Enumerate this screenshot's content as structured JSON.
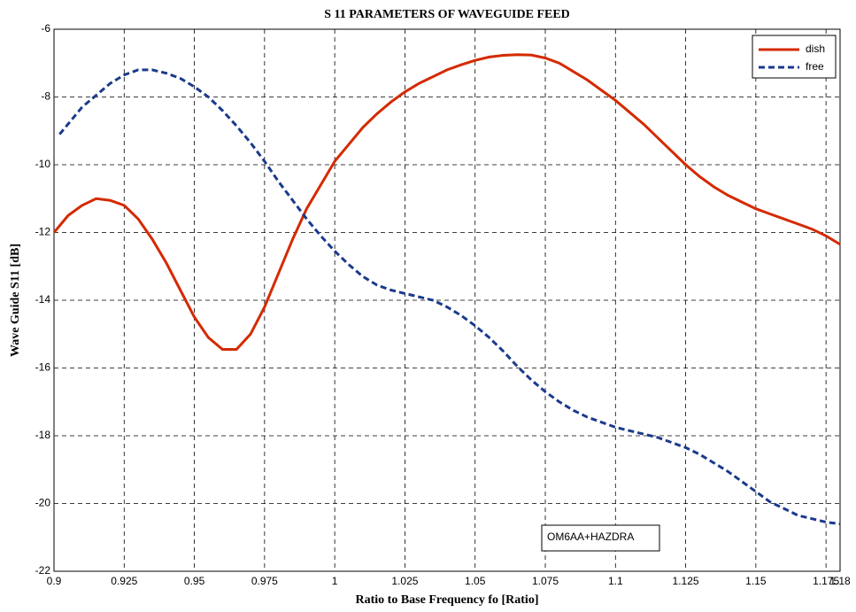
{
  "chart_data": {
    "type": "line",
    "title": "S 11 PARAMETERS OF WAVEGUIDE FEED",
    "x_label": "Ratio to Base Frequency fo  [Ratio]",
    "y_label": "Wave Guide S11 [dB]",
    "annotation": "OM6AA+HAZDRA",
    "xlim": [
      0.9,
      1.18
    ],
    "ylim": [
      -22,
      -6
    ],
    "xticks": [
      0.9,
      0.925,
      0.95,
      0.975,
      1,
      1.025,
      1.05,
      1.075,
      1.1,
      1.125,
      1.15,
      1.175,
      1.18
    ],
    "yticks": [
      -22,
      -20,
      -18,
      -16,
      -14,
      -12,
      -10,
      -8,
      -6
    ],
    "grid": true,
    "legend": "upper right",
    "series": [
      {
        "name": "dish",
        "color": "#d42a00",
        "style": "solid",
        "x": [
          0.9,
          0.905,
          0.91,
          0.915,
          0.92,
          0.925,
          0.93,
          0.935,
          0.94,
          0.945,
          0.95,
          0.955,
          0.96,
          0.965,
          0.97,
          0.975,
          0.98,
          0.985,
          0.99,
          0.995,
          1.0,
          1.005,
          1.01,
          1.015,
          1.02,
          1.025,
          1.03,
          1.035,
          1.04,
          1.045,
          1.05,
          1.055,
          1.06,
          1.065,
          1.07,
          1.075,
          1.08,
          1.085,
          1.09,
          1.095,
          1.1,
          1.105,
          1.11,
          1.115,
          1.12,
          1.125,
          1.13,
          1.135,
          1.14,
          1.145,
          1.15,
          1.155,
          1.16,
          1.165,
          1.17,
          1.175,
          1.18
        ],
        "values": [
          -12.0,
          -11.5,
          -11.2,
          -11.0,
          -11.05,
          -11.2,
          -11.6,
          -12.2,
          -12.9,
          -13.7,
          -14.5,
          -15.1,
          -15.45,
          -15.45,
          -15.0,
          -14.2,
          -13.2,
          -12.2,
          -11.3,
          -10.6,
          -9.9,
          -9.4,
          -8.9,
          -8.5,
          -8.15,
          -7.85,
          -7.6,
          -7.4,
          -7.2,
          -7.05,
          -6.92,
          -6.82,
          -6.77,
          -6.75,
          -6.76,
          -6.85,
          -7.0,
          -7.25,
          -7.5,
          -7.8,
          -8.1,
          -8.45,
          -8.8,
          -9.2,
          -9.6,
          -10.0,
          -10.35,
          -10.65,
          -10.9,
          -11.1,
          -11.3,
          -11.45,
          -11.6,
          -11.75,
          -11.9,
          -12.1,
          -12.35
        ]
      },
      {
        "name": "free",
        "color": "#1a3a8c",
        "style": "dashed",
        "x": [
          0.902,
          0.905,
          0.91,
          0.915,
          0.92,
          0.925,
          0.93,
          0.935,
          0.94,
          0.945,
          0.95,
          0.955,
          0.96,
          0.965,
          0.97,
          0.975,
          0.98,
          0.985,
          0.99,
          0.995,
          1.0,
          1.005,
          1.01,
          1.015,
          1.02,
          1.025,
          1.03,
          1.035,
          1.04,
          1.045,
          1.05,
          1.055,
          1.06,
          1.065,
          1.07,
          1.075,
          1.08,
          1.085,
          1.09,
          1.095,
          1.1,
          1.105,
          1.11,
          1.115,
          1.12,
          1.125,
          1.13,
          1.135,
          1.14,
          1.145,
          1.15,
          1.155,
          1.16,
          1.165,
          1.17,
          1.175,
          1.18
        ],
        "values": [
          -9.1,
          -8.8,
          -8.3,
          -7.95,
          -7.6,
          -7.35,
          -7.2,
          -7.2,
          -7.3,
          -7.45,
          -7.7,
          -8.0,
          -8.4,
          -8.85,
          -9.35,
          -9.9,
          -10.5,
          -11.05,
          -11.6,
          -12.1,
          -12.55,
          -12.95,
          -13.3,
          -13.55,
          -13.7,
          -13.8,
          -13.9,
          -14.0,
          -14.2,
          -14.45,
          -14.75,
          -15.1,
          -15.5,
          -15.95,
          -16.35,
          -16.7,
          -17.0,
          -17.25,
          -17.45,
          -17.6,
          -17.75,
          -17.85,
          -17.95,
          -18.05,
          -18.2,
          -18.35,
          -18.55,
          -18.8,
          -19.05,
          -19.35,
          -19.65,
          -19.95,
          -20.15,
          -20.35,
          -20.45,
          -20.55,
          -20.6
        ]
      }
    ]
  }
}
